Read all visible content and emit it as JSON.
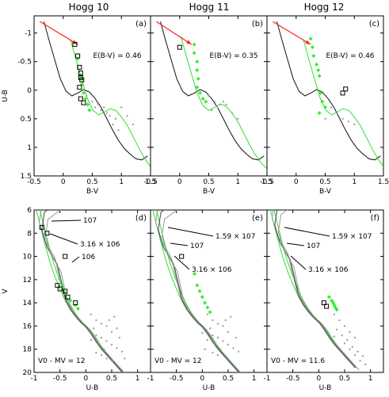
{
  "titles": [
    "Hogg 10",
    "Hogg 11",
    "Hogg 12"
  ],
  "chart_data": {
    "type": "scatter",
    "figure": "multi-panel color-color and color-magnitude diagrams",
    "top_row": {
      "xlabel": "B-V",
      "ylabel": "U-B",
      "xlim": [
        -0.5,
        1.5
      ],
      "ylim": [
        1.5,
        -1.3
      ],
      "y_inverted": true,
      "xticks": [
        -0.5,
        0,
        0.5,
        1,
        1.5
      ],
      "xtick_labels": [
        "-0.5",
        "0",
        "0.5",
        "1",
        "1.5"
      ],
      "yticks": [
        -1,
        -0.5,
        0,
        0.5,
        1,
        1.5
      ],
      "ytick_labels": [
        "-1",
        "-0.5",
        "0",
        "0.5",
        "1",
        "1.5"
      ],
      "intrinsic_line": [
        [
          -0.33,
          -1.2
        ],
        [
          -0.25,
          -0.9
        ],
        [
          -0.15,
          -0.55
        ],
        [
          -0.05,
          -0.2
        ],
        [
          0.05,
          0.02
        ],
        [
          0.15,
          0.1
        ],
        [
          0.25,
          0.05
        ],
        [
          0.35,
          -0.01
        ],
        [
          0.45,
          0.03
        ],
        [
          0.55,
          0.15
        ],
        [
          0.65,
          0.3
        ],
        [
          0.75,
          0.5
        ],
        [
          0.85,
          0.7
        ],
        [
          0.95,
          0.88
        ],
        [
          1.05,
          1.02
        ],
        [
          1.15,
          1.12
        ],
        [
          1.25,
          1.2
        ],
        [
          1.35,
          1.22
        ],
        [
          1.45,
          1.15
        ]
      ],
      "reddened_line_shape": [
        [
          -0.33,
          -1.2
        ],
        [
          -0.28,
          -1.0
        ],
        [
          -0.22,
          -0.75
        ],
        [
          -0.15,
          -0.45
        ],
        [
          -0.08,
          -0.15
        ],
        [
          0.0,
          0.05
        ],
        [
          0.1,
          0.25
        ],
        [
          0.2,
          0.4
        ],
        [
          0.3,
          0.5
        ],
        [
          0.4,
          0.55
        ],
        [
          0.5,
          0.52
        ],
        [
          0.6,
          0.42
        ],
        [
          0.7,
          0.32
        ],
        [
          0.8,
          0.3
        ],
        [
          0.9,
          0.35
        ],
        [
          1.0,
          0.48
        ],
        [
          1.1,
          0.65
        ],
        [
          1.2,
          0.85
        ],
        [
          1.3,
          1.02
        ],
        [
          1.38,
          1.15
        ]
      ],
      "arrow": {
        "from": [
          -0.4,
          -1.2
        ],
        "to": [
          0.25,
          -0.8
        ]
      }
    },
    "bottom_row": {
      "xlabel": "U-B",
      "ylabel": "V",
      "xlim": [
        -1,
        1.25
      ],
      "ylim": [
        20,
        6
      ],
      "y_inverted": true,
      "xticks": [
        -1,
        -0.5,
        0,
        0.5,
        1
      ],
      "xtick_labels": [
        "-1",
        "-0.5",
        "0",
        "0.5",
        "1"
      ],
      "yticks": [
        6,
        8,
        10,
        12,
        14,
        16,
        18,
        20
      ],
      "ytick_labels": [
        "6",
        "8",
        "10",
        "12",
        "14",
        "16",
        "18",
        "20"
      ],
      "zams_shape": [
        [
          -1.0,
          5.2
        ],
        [
          -0.9,
          7.0
        ],
        [
          -0.8,
          8.8
        ],
        [
          -0.7,
          10.4
        ],
        [
          -0.6,
          11.7
        ],
        [
          -0.5,
          12.8
        ],
        [
          -0.4,
          13.8
        ],
        [
          -0.3,
          14.6
        ],
        [
          -0.2,
          15.2
        ],
        [
          -0.1,
          15.7
        ],
        [
          0.0,
          16.1
        ],
        [
          0.1,
          16.7
        ],
        [
          0.2,
          17.4
        ],
        [
          0.3,
          18.0
        ],
        [
          0.4,
          18.5
        ],
        [
          0.5,
          19.0
        ],
        [
          0.6,
          19.5
        ],
        [
          0.7,
          20.0
        ]
      ]
    },
    "panels": [
      {
        "label": "(a)",
        "row": "top",
        "col": 0,
        "annotation": "E(B-V) = 0.46",
        "ebv": 0.46,
        "squares": [
          [
            0.2,
            -0.8
          ],
          [
            0.25,
            -0.6
          ],
          [
            0.28,
            -0.4
          ],
          [
            0.3,
            -0.3
          ],
          [
            0.3,
            -0.22
          ],
          [
            0.32,
            -0.18
          ],
          [
            0.28,
            -0.05
          ],
          [
            0.3,
            0.15
          ],
          [
            0.35,
            0.22
          ]
        ],
        "green": [
          [
            0.25,
            -0.55
          ],
          [
            0.3,
            -0.25
          ],
          [
            0.32,
            -0.1
          ],
          [
            0.35,
            0.05
          ],
          [
            0.38,
            0.15
          ],
          [
            0.42,
            0.25
          ],
          [
            0.45,
            0.35
          ]
        ],
        "gray": [
          [
            0.4,
            0.1
          ],
          [
            0.5,
            0.2
          ],
          [
            0.55,
            0.3
          ],
          [
            0.6,
            0.25
          ],
          [
            0.7,
            0.3
          ],
          [
            0.8,
            0.45
          ],
          [
            0.9,
            0.5
          ],
          [
            1.0,
            0.3
          ],
          [
            1.1,
            0.45
          ],
          [
            1.2,
            0.6
          ],
          [
            0.65,
            0.35
          ],
          [
            0.75,
            0.4
          ],
          [
            0.85,
            0.6
          ],
          [
            0.95,
            0.7
          ]
        ]
      },
      {
        "label": "(b)",
        "row": "top",
        "col": 1,
        "annotation": "E(B-V) = 0.35",
        "ebv": 0.35,
        "squares": [
          [
            0.0,
            -0.75
          ]
        ],
        "green": [
          [
            0.25,
            -0.8
          ],
          [
            0.25,
            -0.65
          ],
          [
            0.3,
            -0.5
          ],
          [
            0.3,
            -0.35
          ],
          [
            0.32,
            -0.2
          ],
          [
            0.3,
            -0.05
          ],
          [
            0.35,
            0.05
          ],
          [
            0.4,
            0.15
          ],
          [
            0.45,
            0.2
          ]
        ],
        "gray": [
          [
            0.5,
            0.1
          ],
          [
            0.6,
            0.2
          ],
          [
            0.65,
            0.3
          ],
          [
            0.7,
            0.25
          ],
          [
            0.75,
            0.2
          ],
          [
            0.8,
            0.25
          ],
          [
            0.9,
            0.4
          ],
          [
            1.0,
            0.5
          ],
          [
            0.55,
            0.35
          ]
        ]
      },
      {
        "label": "(c)",
        "row": "top",
        "col": 2,
        "annotation": "E(B-V) = 0.46",
        "ebv": 0.46,
        "squares": [
          [
            0.8,
            0.05
          ],
          [
            0.85,
            -0.02
          ]
        ],
        "green": [
          [
            0.25,
            -0.9
          ],
          [
            0.28,
            -0.75
          ],
          [
            0.3,
            -0.6
          ],
          [
            0.35,
            -0.45
          ],
          [
            0.38,
            -0.35
          ],
          [
            0.4,
            -0.25
          ],
          [
            0.42,
            0.05
          ],
          [
            0.45,
            0.2
          ],
          [
            0.5,
            0.3
          ],
          [
            0.4,
            0.4
          ]
        ],
        "gray": [
          [
            0.6,
            0.3
          ],
          [
            0.7,
            0.4
          ],
          [
            0.8,
            0.5
          ],
          [
            0.9,
            0.55
          ],
          [
            1.0,
            0.6
          ],
          [
            0.5,
            0.5
          ]
        ]
      },
      {
        "label": "(d)",
        "row": "bottom",
        "col": 0,
        "annotation": "V0 - MV = 12",
        "dm": 12,
        "iso_labels": [
          "10^7",
          "3.16 x 10^6",
          "10^6"
        ],
        "squares": [
          [
            -0.85,
            7.5
          ],
          [
            -0.75,
            8.0
          ],
          [
            -0.4,
            10.0
          ],
          [
            -0.55,
            12.5
          ],
          [
            -0.5,
            12.8
          ],
          [
            -0.4,
            13.0
          ],
          [
            -0.35,
            13.5
          ],
          [
            -0.2,
            14.0
          ]
        ],
        "green": [
          [
            -0.5,
            12.0
          ],
          [
            -0.45,
            12.6
          ],
          [
            -0.4,
            13.2
          ],
          [
            -0.3,
            13.8
          ],
          [
            -0.2,
            14.2
          ],
          [
            -0.15,
            14.5
          ]
        ],
        "gray": [
          [
            0.1,
            15.0
          ],
          [
            0.2,
            15.5
          ],
          [
            0.3,
            15.8
          ],
          [
            0.4,
            16.0
          ],
          [
            0.5,
            16.5
          ],
          [
            0.2,
            16.8
          ],
          [
            0.3,
            17.0
          ],
          [
            0.4,
            17.3
          ],
          [
            0.5,
            17.6
          ],
          [
            0.6,
            17.9
          ],
          [
            0.7,
            18.2
          ],
          [
            0.3,
            18.5
          ],
          [
            0.4,
            18.8
          ],
          [
            0.5,
            19.0
          ],
          [
            0.15,
            16.2
          ],
          [
            0.25,
            17.5
          ],
          [
            0.35,
            18.0
          ],
          [
            0.45,
            15.5
          ],
          [
            0.55,
            15.2
          ],
          [
            0.6,
            16.2
          ],
          [
            0.65,
            17.0
          ],
          [
            0.2,
            18.3
          ],
          [
            0.1,
            17.2
          ],
          [
            0.75,
            18.8
          ]
        ]
      },
      {
        "label": "(e)",
        "row": "bottom",
        "col": 1,
        "annotation": "V0 - MV = 12",
        "dm": 12,
        "iso_labels": [
          "1.59 x 10^7",
          "10^7",
          "3.16 x 10^6"
        ],
        "squares": [
          [
            -0.4,
            10.0
          ]
        ],
        "green": [
          [
            -0.15,
            11.5
          ],
          [
            -0.1,
            12.5
          ],
          [
            -0.05,
            13.0
          ],
          [
            0.0,
            13.5
          ],
          [
            0.05,
            14.0
          ],
          [
            0.1,
            14.4
          ],
          [
            0.15,
            14.8
          ]
        ],
        "gray": [
          [
            0.1,
            15.0
          ],
          [
            0.2,
            15.5
          ],
          [
            0.3,
            15.8
          ],
          [
            0.4,
            16.0
          ],
          [
            0.5,
            16.5
          ],
          [
            0.2,
            16.8
          ],
          [
            0.3,
            17.0
          ],
          [
            0.4,
            17.3
          ],
          [
            0.5,
            17.6
          ],
          [
            0.6,
            17.9
          ],
          [
            0.7,
            18.2
          ],
          [
            0.3,
            18.5
          ],
          [
            0.15,
            16.2
          ],
          [
            0.25,
            17.5
          ],
          [
            0.35,
            18.0
          ],
          [
            0.45,
            15.5
          ],
          [
            0.55,
            15.2
          ],
          [
            0.65,
            17.0
          ],
          [
            0.2,
            18.3
          ],
          [
            0.1,
            17.2
          ],
          [
            0.0,
            16.6
          ],
          [
            0.05,
            18.0
          ]
        ]
      },
      {
        "label": "(f)",
        "row": "bottom",
        "col": 2,
        "annotation": "V0 - MV = 11.6",
        "dm": 11.6,
        "iso_labels": [
          "1.59 x 10^7",
          "10^7",
          "3.16 x 10^6"
        ],
        "squares": [
          [
            0.1,
            14.0
          ],
          [
            0.15,
            14.3
          ]
        ],
        "green": [
          [
            0.2,
            13.5
          ],
          [
            0.25,
            13.8
          ],
          [
            0.28,
            14.0
          ],
          [
            0.3,
            14.2
          ],
          [
            0.32,
            14.4
          ],
          [
            0.35,
            14.6
          ]
        ],
        "gray": [
          [
            0.3,
            15.0
          ],
          [
            0.4,
            15.5
          ],
          [
            0.5,
            16.0
          ],
          [
            0.6,
            16.5
          ],
          [
            0.7,
            17.0
          ],
          [
            0.5,
            17.5
          ],
          [
            0.6,
            18.0
          ],
          [
            0.7,
            18.5
          ],
          [
            0.8,
            19.0
          ],
          [
            0.35,
            16.3
          ],
          [
            0.45,
            16.8
          ],
          [
            0.55,
            17.2
          ],
          [
            0.65,
            17.8
          ],
          [
            0.75,
            18.2
          ],
          [
            0.85,
            18.6
          ],
          [
            0.9,
            19.3
          ],
          [
            0.4,
            17.9
          ],
          [
            0.3,
            16.9
          ]
        ]
      }
    ]
  },
  "colors": {
    "intrinsic": "#111111",
    "reddened": "#33dd33",
    "iso": "#999999",
    "iso_dark": "#444444",
    "arrow": "#ff2222",
    "green_pts": "#33ee33",
    "gray_pts": "#999999",
    "square": "#000000",
    "frame": "#000000"
  }
}
